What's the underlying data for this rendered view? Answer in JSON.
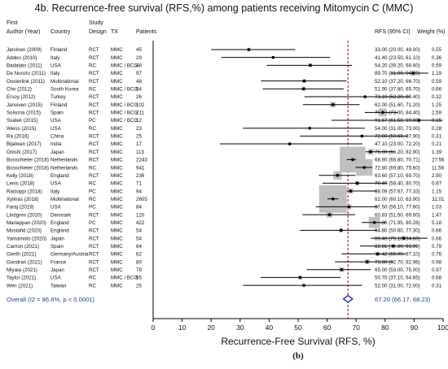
{
  "title": "4b. Recurrence-free survival (RFS,%) among patients receiving Mitomycin C (MMC)",
  "headers": {
    "author_line1": "First",
    "author_line2": "Author (Year)",
    "country": "Country",
    "design_line1": "Study",
    "design_line2": "Design",
    "tx": "TX",
    "patients": "Patients",
    "rfs_ci": "RFS (95% CI)",
    "weight": "Weight (%)"
  },
  "footer": {
    "xlabel": "Recurrence-Free Survival (RFS, %)",
    "sublabel": "(b)"
  },
  "chart_data": {
    "type": "forest",
    "xlim": [
      0,
      100
    ],
    "xticks": [
      "0",
      "10",
      "20",
      "30",
      "40",
      "50",
      "60",
      "70",
      "80",
      "90",
      "100"
    ],
    "tick_values": [
      0,
      10,
      20,
      30,
      40,
      50,
      60,
      70,
      80,
      90,
      100
    ],
    "reference_line": 67.2,
    "studies": [
      {
        "author": "Jarvinen (2009)",
        "country": "Finland",
        "design": "RCT",
        "tx": "MMC",
        "patients": "45",
        "rfs": 33.0,
        "lo": 20.0,
        "hi": 49.0,
        "ci_text": "33.00 (20.00, 49.00)",
        "weight_text": "0.55",
        "weight": 0.55
      },
      {
        "author": "Addeo (2010)",
        "country": "Italy",
        "design": "RCT",
        "tx": "MMC",
        "patients": "29",
        "rfs": 41.4,
        "lo": 23.5,
        "hi": 61.1,
        "ci_text": "41.40 (23.50, 61.10)",
        "weight_text": "0.36",
        "weight": 0.36
      },
      {
        "author": "Badalato (2011)",
        "country": "USA",
        "design": "RC",
        "tx": "MMC / BCG",
        "patients": "48",
        "rfs": 54.2,
        "lo": 39.2,
        "hi": 68.6,
        "ci_text": "54.20 (39.20, 68.60)",
        "weight_text": "0.59",
        "weight": 0.59
      },
      {
        "author": "De Nunzio (2011)",
        "country": "Italy",
        "design": "RCT",
        "tx": "MMC",
        "patients": "97",
        "rfs": 89.7,
        "lo": 81.9,
        "hi": 94.9,
        "ci_text": "89.70 (81.90, 94.90)",
        "weight_text": "1.19",
        "weight": 1.19
      },
      {
        "author": "Oosterlink (2011)",
        "country": "Multinational",
        "design": "RCT",
        "tx": "MMC",
        "patients": "48",
        "rfs": 52.1,
        "lo": 37.2,
        "hi": 66.7,
        "ci_text": "52.10 (37.20, 66.70)",
        "weight_text": "0.59",
        "weight": 0.59
      },
      {
        "author": "Cho (2012)",
        "country": "South Korea",
        "design": "RC",
        "tx": "MMC / BCG",
        "patients": "54",
        "rfs": 51.9,
        "lo": 37.8,
        "hi": 65.7,
        "ci_text": "51.90 (37.80, 65.70)",
        "weight_text": "0.66",
        "weight": 0.66
      },
      {
        "author": "Ersoy (2012)",
        "country": "Turkey",
        "design": "RCT",
        "tx": "MMC",
        "patients": "26",
        "rfs": 73.1,
        "lo": 52.2,
        "hi": 88.4,
        "ci_text": "73.10 (52.20, 88.40)",
        "weight_text": "0.32",
        "weight": 0.32
      },
      {
        "author": "Janviven (2015)",
        "country": "Finland",
        "design": "RCT",
        "tx": "MMC / BCG",
        "patients": "102",
        "rfs": 62.0,
        "lo": 51.6,
        "hi": 71.2,
        "ci_text": "62.00 (51.60, 71.20)",
        "weight_text": "1.25",
        "weight": 1.25
      },
      {
        "author": "Solsona (2015)",
        "country": "Spain",
        "design": "RCT",
        "tx": "MMC / BCG",
        "patients": "211",
        "rfs": 79.2,
        "tlo": 0,
        "lo": 73.0,
        "hi": 84.4,
        "ci_text": "79.20 (73.00, 84.40)",
        "weight_text": "2.59",
        "weight": 2.59
      },
      {
        "author": "Svatek (2015)",
        "country": "USA",
        "design": "PC",
        "tx": "MMC / BCG",
        "patients": "12",
        "rfs": 91.67,
        "lo": 61.5,
        "hi": 99.8,
        "ci_text": "91.67 (61.50, 99.80)",
        "weight_text": "0.15",
        "weight": 0.15
      },
      {
        "author": "Weiss (2015)",
        "country": "USA",
        "design": "RC",
        "tx": "MMC",
        "patients": "23",
        "rfs": 54.0,
        "lo": 31.0,
        "hi": 73.0,
        "ci_text": "54.00 (31.00, 73.00)",
        "weight_text": "0.28",
        "weight": 0.28
      },
      {
        "author": "Ra (2016)",
        "country": "China",
        "design": "RCT",
        "tx": "MMC",
        "patients": "25",
        "rfs": 72.0,
        "lo": 50.6,
        "hi": 87.9,
        "ci_text": "72.00 (50.60, 87.90)",
        "weight_text": "0.31",
        "weight": 0.31
      },
      {
        "author": "Bijalwan (2017)",
        "country": "India",
        "design": "RCT",
        "tx": "MMC",
        "patients": "17",
        "rfs": 47.1,
        "lo": 23.0,
        "hi": 72.2,
        "ci_text": "47.10 (23.00, 72.20)",
        "weight_text": "0.21",
        "weight": 0.21
      },
      {
        "author": "Onishi (2017)",
        "country": "Japan",
        "design": "RCT",
        "tx": "MMC",
        "patients": "113",
        "rfs": 75.0,
        "lo": 66.2,
        "hi": 82.9,
        "ci_text": "75.00 (66.20, 82.90)",
        "weight_text": "1.39",
        "weight": 1.39
      },
      {
        "author": "Bosschieter (2018)",
        "country": "Netherlands",
        "design": "RCT",
        "tx": "MMC",
        "patients": "2243",
        "rfs": 68.8,
        "lo": 66.8,
        "hi": 70.71,
        "ci_text": "68.80 (66.80, 70.71)",
        "weight_text": "27.56",
        "weight": 27.56
      },
      {
        "author": "Bosschieter (2018)",
        "country": "Netherlands",
        "design": "RC",
        "tx": "MMC",
        "patients": "941",
        "rfs": 72.8,
        "lo": 69.8,
        "hi": 75.6,
        "ci_text": "72.80 (69.80, 75.60)",
        "weight_text": "11.56",
        "weight": 11.56
      },
      {
        "author": "Kelly (2018)",
        "country": "England",
        "design": "RCT",
        "tx": "MMC",
        "patients": "236",
        "rfs": 63.6,
        "lo": 57.1,
        "hi": 69.7,
        "ci_text": "63.60 (57.10, 69.70)",
        "weight_text": "2.90",
        "weight": 2.9
      },
      {
        "author": "Lenis (2018)",
        "country": "USA",
        "design": "RC",
        "tx": "MMC",
        "patients": "71",
        "rfs": 70.4,
        "lo": 58.4,
        "hi": 80.7,
        "ci_text": "70.40 (58.40, 80.70)",
        "weight_text": "0.87",
        "weight": 0.87
      },
      {
        "author": "Racioppi (2018)",
        "country": "Italy",
        "design": "PC",
        "tx": "MMC",
        "patients": "94",
        "rfs": 68.09,
        "lo": 57.67,
        "hi": 77.33,
        "ci_text": "68.09 (57.67, 77.33)",
        "weight_text": "1.15",
        "weight": 1.15
      },
      {
        "author": "Xylinas (2018)",
        "country": "Multinational",
        "design": "RC",
        "tx": "MMC",
        "patients": "2605",
        "rfs": 62.0,
        "lo": 60.1,
        "hi": 63.9,
        "ci_text": "62.00 (60.10, 63.90)",
        "weight_text": "32.01",
        "weight": 32.01
      },
      {
        "author": "Faraj (2019)",
        "country": "USA",
        "design": "PC",
        "tx": "MMC",
        "patients": "84",
        "rfs": 67.5,
        "lo": 56.1,
        "hi": 77.6,
        "ci_text": "67.50 (56.10, 77.60)",
        "weight_text": "1.03",
        "weight": 1.03
      },
      {
        "author": "Lindgren (2020)",
        "country": "Denmark",
        "design": "RCT",
        "tx": "MMC",
        "patients": "120",
        "rfs": 60.83,
        "lo": 51.5,
        "hi": 69.6,
        "ci_text": "60.83 (51.50, 69.60)",
        "weight_text": "1.47",
        "weight": 1.47
      },
      {
        "author": "Mariappan (2020)",
        "country": "England",
        "design": "PC",
        "tx": "MMC",
        "patients": "422",
        "rfs": 76.3,
        "lo": 71.95,
        "hi": 80.28,
        "ci_text": "76.30 (71.95, 80.28)",
        "weight_text": "5.18",
        "weight": 5.18
      },
      {
        "author": "Mostafid (2020)",
        "country": "England",
        "design": "RCT",
        "tx": "MMC",
        "patients": "54",
        "rfs": 64.8,
        "lo": 50.6,
        "hi": 77.3,
        "ci_text": "64.80 (50.60, 77.30)",
        "weight_text": "0.66",
        "weight": 0.66
      },
      {
        "author": "Yamamoto (2020)",
        "country": "Japan",
        "design": "RCT",
        "tx": "MMC",
        "patients": "54",
        "rfs": 86.4,
        "lo": 75.1,
        "hi": 94.6,
        "ci_text": "86.40 (75.10, 94.60)",
        "weight_text": "0.66",
        "weight": 0.66
      },
      {
        "author": "Carrion (2021)",
        "country": "Spain",
        "design": "RCT",
        "tx": "MMC",
        "patients": "64",
        "rfs": 82.81,
        "lo": 71.3,
        "hi": 91.09,
        "ci_text": "82.81 (71.30, 91.09)",
        "weight_text": "0.79",
        "weight": 0.79
      },
      {
        "author": "Gierth (2021)",
        "country": "Germany/Austria",
        "design": "RCT",
        "tx": "MMC",
        "patients": "62",
        "rfs": 77.42,
        "lo": 65.0,
        "hi": 87.1,
        "ci_text": "77.42 (65.00, 87.10)",
        "weight_text": "0.76",
        "weight": 0.76
      },
      {
        "author": "Gondran (2021)",
        "country": "France",
        "design": "RCT",
        "tx": "MMC",
        "patients": "80",
        "rfs": 73.8,
        "lo": 62.7,
        "hi": 82.96,
        "ci_text": "73.80 (62.70, 82.96)",
        "weight_text": "0.98",
        "weight": 0.98
      },
      {
        "author": "Miyata (2021)",
        "country": "Japan",
        "design": "RCT",
        "tx": "MMC",
        "patients": "79",
        "rfs": 65.0,
        "lo": 53.0,
        "hi": 75.0,
        "ci_text": "65.00 (53.00, 75.00)",
        "weight_text": "0.97",
        "weight": 0.97
      },
      {
        "author": "Taylor (2021)",
        "country": "USA",
        "design": "RC",
        "tx": "MMC / BCG",
        "patients": "55",
        "rfs": 50.7,
        "lo": 37.1,
        "hi": 64.65,
        "ci_text": "50.70 (37.10, 64.65)",
        "weight_text": "0.68",
        "weight": 0.68
      },
      {
        "author": "Wen (2021)",
        "country": "Taiwan",
        "design": "RC",
        "tx": "MMC",
        "patients": "25",
        "rfs": 52.0,
        "lo": 31.0,
        "hi": 72.0,
        "ci_text": "52.00 (31.00, 72.00)",
        "weight_text": "0.31",
        "weight": 0.31
      }
    ],
    "overall": {
      "label": "Overall  (I2 = 86.6%, p < 0.0001)",
      "rfs": 67.2,
      "lo": 66.17,
      "hi": 68.23,
      "ci_text": "67.20 (66.17, 68.23)"
    }
  }
}
